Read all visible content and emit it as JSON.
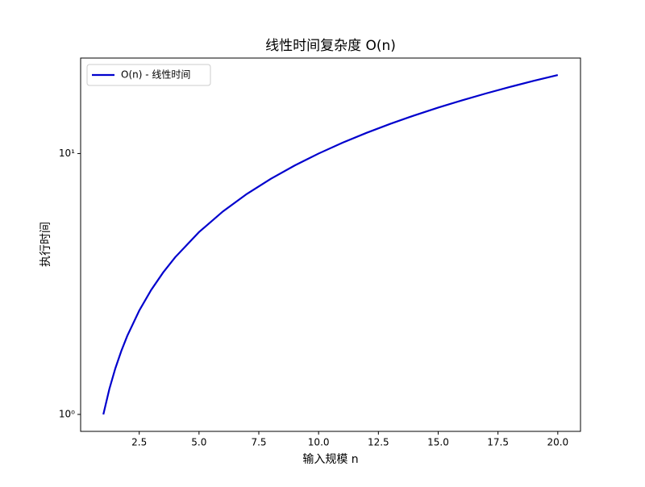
{
  "chart_data": {
    "type": "line",
    "title": "线性时间复杂度 O(n)",
    "x_label": "输入规模 n",
    "y_label": "执行时间",
    "x": [
      1,
      1.25,
      1.5,
      1.75,
      2,
      2.5,
      3,
      3.5,
      4,
      5,
      6,
      7,
      8,
      9,
      10,
      11,
      12,
      13,
      14,
      15,
      16,
      17,
      18,
      19,
      20
    ],
    "series": [
      {
        "name": "O(n) - 线性时间",
        "color": "#0000cd",
        "values": [
          1,
          1.25,
          1.5,
          1.75,
          2,
          2.5,
          3,
          3.5,
          4,
          5,
          6,
          7,
          8,
          9,
          10,
          11,
          12,
          13,
          14,
          15,
          16,
          17,
          18,
          19,
          20
        ]
      }
    ],
    "xlim": [
      0.05,
      20.95
    ],
    "xticks": [
      2.5,
      {
        "value": 5,
        "label": "5.0"
      },
      7.5,
      {
        "value": 10,
        "label": "10.0"
      },
      12.5,
      {
        "value": 15,
        "label": "15.0"
      },
      17.5,
      {
        "value": 20,
        "label": "20.0"
      }
    ],
    "ylim": [
      0.861,
      23.23
    ],
    "y_scale": "log",
    "yticks": [
      {
        "value": 1,
        "label": "10⁰"
      },
      {
        "value": 10,
        "label": "10¹"
      }
    ],
    "grid": false,
    "legend": "upper left"
  }
}
